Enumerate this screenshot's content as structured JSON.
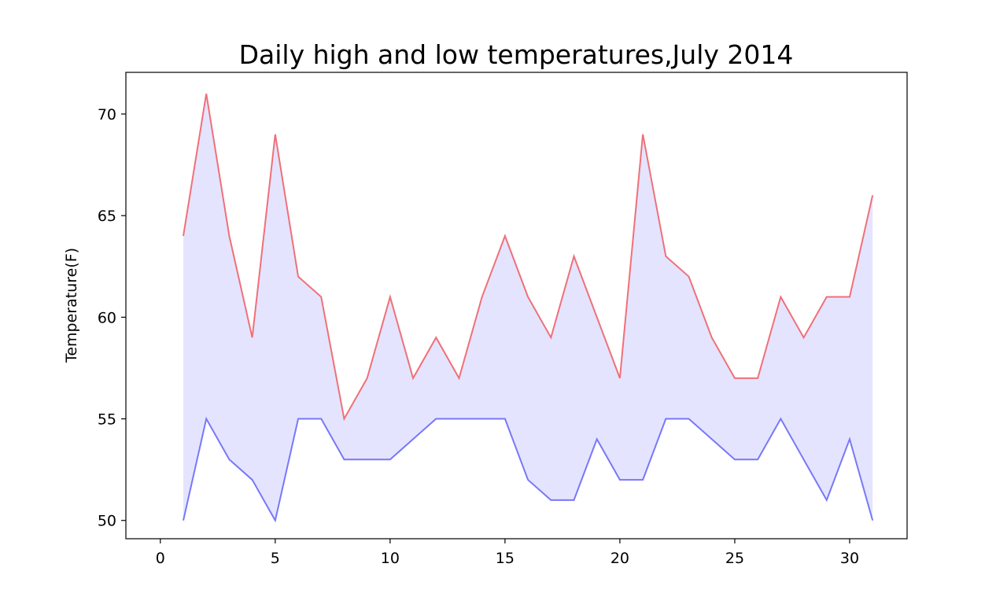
{
  "chart_data": {
    "type": "line",
    "title": "Daily high and low temperatures,July 2014",
    "xlabel": "",
    "ylabel": "Temperature(F)",
    "x": [
      1,
      2,
      3,
      4,
      5,
      6,
      7,
      8,
      9,
      10,
      11,
      12,
      13,
      14,
      15,
      16,
      17,
      18,
      19,
      20,
      21,
      22,
      23,
      24,
      25,
      26,
      27,
      28,
      29,
      30,
      31
    ],
    "series": [
      {
        "values": [
          64,
          71,
          64,
          59,
          69,
          62,
          61,
          55,
          57,
          61,
          57,
          59,
          57,
          61,
          64,
          61,
          59,
          63,
          60,
          57,
          69,
          63,
          62,
          59,
          57,
          57,
          61,
          59,
          61,
          61,
          66
        ],
        "color": "#f07078"
      },
      {
        "values": [
          50,
          55,
          53,
          52,
          50,
          55,
          55,
          53,
          53,
          53,
          54,
          55,
          55,
          55,
          55,
          52,
          51,
          51,
          54,
          52,
          52,
          55,
          55,
          54,
          53,
          53,
          55,
          53,
          51,
          54,
          50
        ],
        "color": "#7878f8"
      }
    ],
    "fill_between_color": "#e4e4ff",
    "xlim": [
      -1.5,
      32.5
    ],
    "ylim": [
      49.1,
      72.05
    ],
    "xticks": [
      "0",
      "5",
      "10",
      "15",
      "20",
      "25",
      "30"
    ],
    "yticks": [
      "50",
      "55",
      "60",
      "65",
      "70"
    ],
    "grid": false,
    "legend": false
  }
}
